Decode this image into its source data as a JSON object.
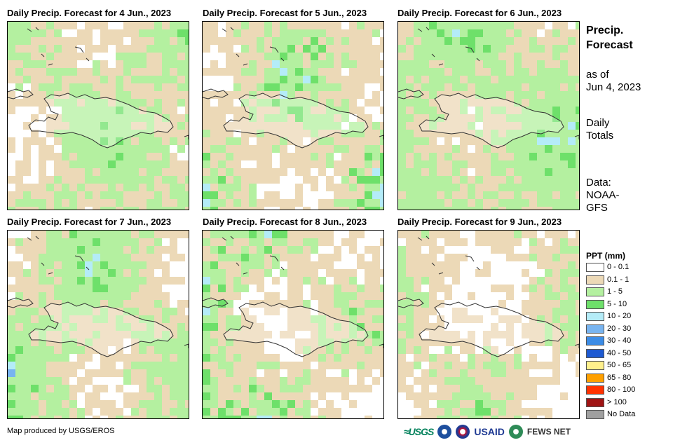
{
  "panels": [
    {
      "title": "Daily Precip. Forecast for 4 Jun., 2023",
      "seed": 11,
      "dry": 0.34,
      "wet": 0.85,
      "east": 0.3
    },
    {
      "title": "Daily Precip. Forecast for 5 Jun., 2023",
      "seed": 27,
      "dry": 0.42,
      "wet": 0.7,
      "east": 0.0
    },
    {
      "title": "Daily Precip. Forecast for 6 Jun., 2023",
      "seed": 53,
      "dry": 0.2,
      "wet": 0.75,
      "east": 0.0
    },
    {
      "title": "Daily Precip. Forecast for 7 Jun., 2023",
      "seed": 71,
      "dry": 0.3,
      "wet": 0.78,
      "east": -0.2
    },
    {
      "title": "Daily Precip. Forecast for 8 Jun., 2023",
      "seed": 97,
      "dry": 0.45,
      "wet": 0.72,
      "east": -0.5
    },
    {
      "title": "Daily Precip. Forecast for 9 Jun., 2023",
      "seed": 131,
      "dry": 0.55,
      "wet": 0.92,
      "east": -0.1
    }
  ],
  "sidebar": {
    "title_line1": "Precip.",
    "title_line2": "Forecast",
    "asof_line1": "as of",
    "asof_line2": "Jun 4, 2023",
    "totals_line1": "Daily",
    "totals_line2": "Totals",
    "source_line1": "Data:",
    "source_line2": "NOAA-",
    "source_line3": "GFS"
  },
  "legend": {
    "title": "PPT (mm)",
    "items": [
      {
        "label": "0 - 0.1",
        "color": "#ffffff"
      },
      {
        "label": "0.1 - 1",
        "color": "#ecd9b7"
      },
      {
        "label": "1 - 5",
        "color": "#b4f0a0"
      },
      {
        "label": "5 - 10",
        "color": "#6ee06a"
      },
      {
        "label": "10 - 20",
        "color": "#b4ecf8"
      },
      {
        "label": "20 - 30",
        "color": "#78b4f0"
      },
      {
        "label": "30 - 40",
        "color": "#3c8ce6"
      },
      {
        "label": "40 - 50",
        "color": "#1e5ad2"
      },
      {
        "label": "50 - 65",
        "color": "#fff08c"
      },
      {
        "label": "65 - 80",
        "color": "#ffa000"
      },
      {
        "label": "80 - 100",
        "color": "#ff3200"
      },
      {
        "label": "> 100",
        "color": "#a01414"
      },
      {
        "label": "No Data",
        "color": "#a0a0a0"
      }
    ]
  },
  "credit": "Map produced by USGS/EROS",
  "logos": {
    "usgs": "≈USGS",
    "usaid": "USAID",
    "fews": "FEWS NET"
  }
}
